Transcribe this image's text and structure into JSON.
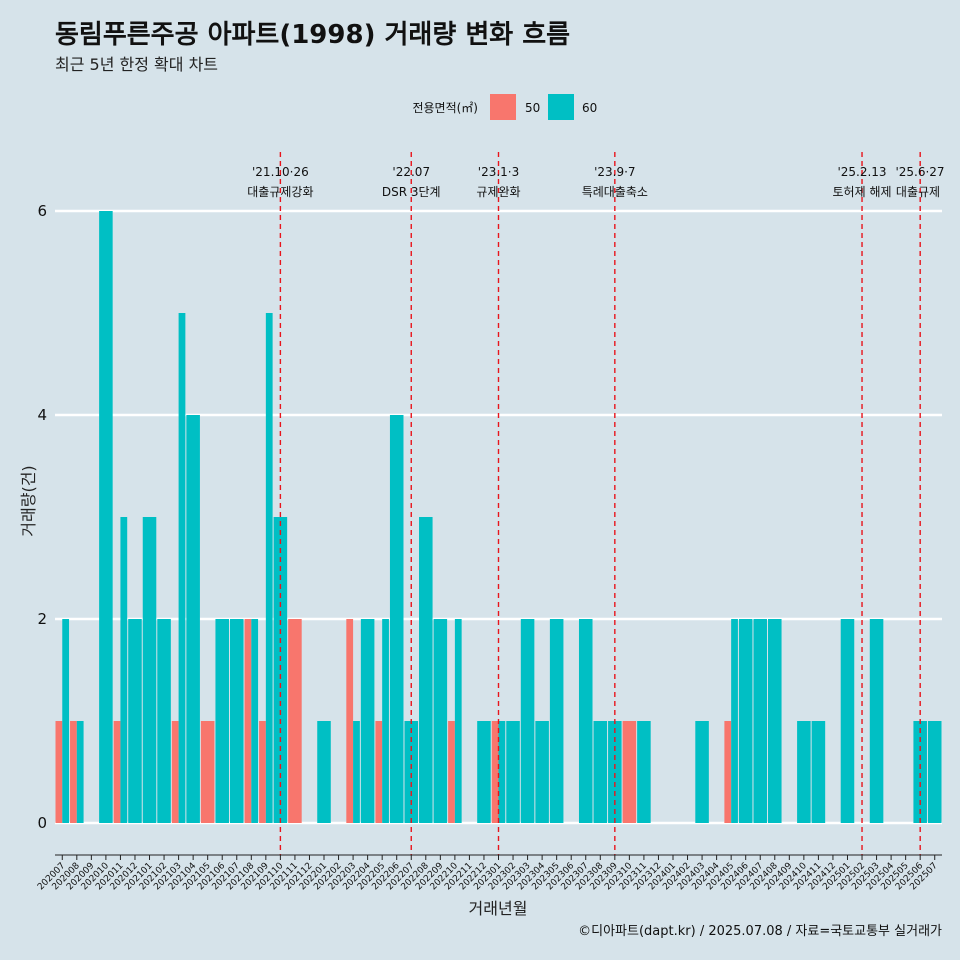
{
  "title": "동림푸른주공 아파트(1998) 거래량 변화 흐름",
  "subtitle": "최근 5년 한정 확대 차트",
  "caption": "©디아파트(dapt.kr) / 2025.07.08 / 자료=국토교통부 실거래가",
  "chart_data": {
    "type": "bar",
    "xlabel": "거래년월",
    "ylabel": "거래량(건)",
    "ylim": [
      0,
      6
    ],
    "yticks": [
      "0",
      "2",
      "4",
      "6"
    ],
    "grid": "horizontal",
    "legend": {
      "title": "전용면적(㎡)",
      "placement": "top"
    },
    "colors": {
      "50": "#f8766d",
      "60": "#00bfc4"
    },
    "categories": [
      "202007",
      "202008",
      "202009",
      "202010",
      "202011",
      "202012",
      "202101",
      "202102",
      "202103",
      "202104",
      "202105",
      "202106",
      "202107",
      "202108",
      "202109",
      "202110",
      "202111",
      "202112",
      "202201",
      "202202",
      "202203",
      "202204",
      "202205",
      "202206",
      "202207",
      "202208",
      "202209",
      "202210",
      "202211",
      "202212",
      "202301",
      "202302",
      "202303",
      "202304",
      "202305",
      "202306",
      "202307",
      "202308",
      "202309",
      "202310",
      "202311",
      "202312",
      "202401",
      "202402",
      "202403",
      "202404",
      "202405",
      "202406",
      "202407",
      "202408",
      "202409",
      "202410",
      "202411",
      "202412",
      "202501",
      "202502",
      "202503",
      "202504",
      "202505",
      "202506",
      "202507"
    ],
    "series": [
      {
        "name": "50",
        "values": [
          1,
          1,
          0,
          0,
          1,
          0,
          0,
          0,
          1,
          0,
          1,
          0,
          0,
          2,
          1,
          0,
          2,
          0,
          0,
          0,
          2,
          0,
          1,
          0,
          0,
          0,
          0,
          1,
          0,
          0,
          1,
          0,
          0,
          0,
          0,
          0,
          0,
          0,
          0,
          1,
          0,
          0,
          0,
          0,
          0,
          0,
          1,
          0,
          0,
          0,
          0,
          0,
          0,
          0,
          0,
          0,
          0,
          0,
          0,
          0,
          0
        ]
      },
      {
        "name": "60",
        "values": [
          2,
          1,
          0,
          6,
          3,
          2,
          3,
          2,
          5,
          4,
          0,
          2,
          2,
          2,
          5,
          3,
          0,
          0,
          1,
          0,
          1,
          2,
          2,
          4,
          1,
          3,
          2,
          2,
          0,
          1,
          1,
          1,
          2,
          1,
          2,
          0,
          2,
          1,
          1,
          0,
          1,
          0,
          0,
          0,
          1,
          0,
          2,
          2,
          2,
          2,
          0,
          1,
          1,
          0,
          2,
          0,
          2,
          0,
          0,
          1,
          1
        ]
      }
    ],
    "annotations": [
      {
        "x": "202110",
        "date": "'21.10·26",
        "label": "대출규제강화"
      },
      {
        "x": "202207",
        "date": "'22.07",
        "label": "DSR 3단계"
      },
      {
        "x": "202301",
        "date": "'23.1·3",
        "label": "규제완화"
      },
      {
        "x": "202309",
        "date": "'23.9·7",
        "label": "특례대출축소"
      },
      {
        "x": "202502",
        "date": "'25.2.13",
        "label": "토허제 해제"
      },
      {
        "x": "202506",
        "date": "'25.6·27",
        "label": "대출규제"
      }
    ]
  }
}
